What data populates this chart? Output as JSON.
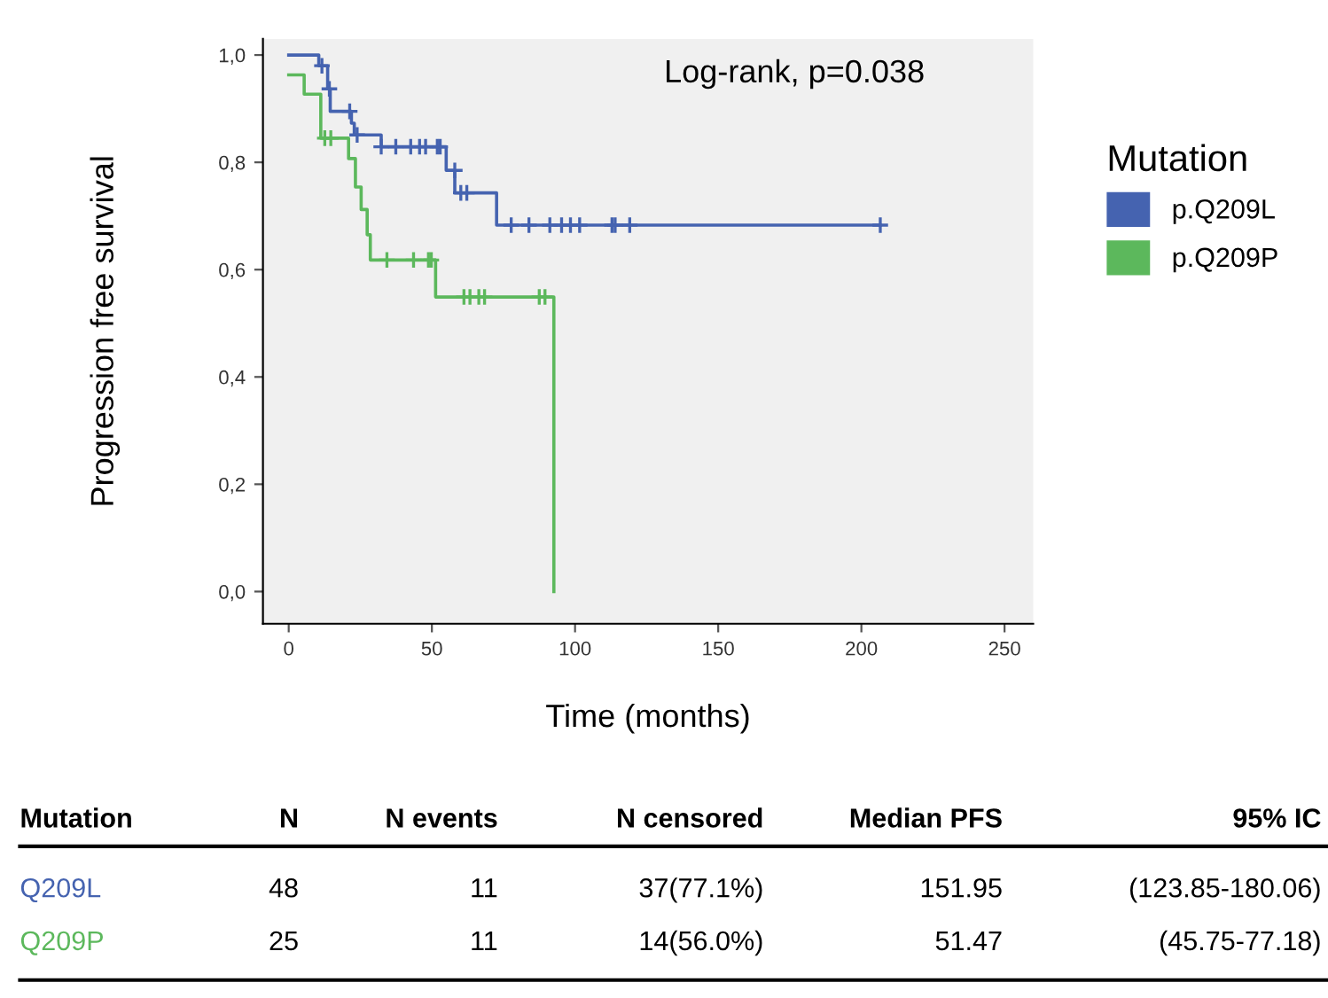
{
  "chart_data": {
    "type": "step",
    "ylabel": "Progression free survival",
    "xlabel": "Time (months)",
    "legend_title": "Mutation",
    "legend": "right",
    "grid": false,
    "xlim": [
      -9,
      260
    ],
    "xticks": [
      0,
      50,
      100,
      150,
      200,
      250
    ],
    "ylim": [
      -0.06,
      1.03
    ],
    "yticks": [
      {
        "value": 0.0,
        "label": "0,0"
      },
      {
        "value": 0.2,
        "label": "0,2"
      },
      {
        "value": 0.4,
        "label": "0,4"
      },
      {
        "value": 0.6,
        "label": "0,6"
      },
      {
        "value": 0.8,
        "label": "0,8"
      },
      {
        "value": 1.0,
        "label": "1,0"
      }
    ],
    "series": [
      {
        "name": "p.Q209L",
        "color": "#4563b0",
        "marker": "none",
        "x": [
          0,
          10.5,
          13.6,
          14.5,
          21.9,
          22.9,
          32.3,
          55,
          58,
          72.6,
          206.6
        ],
        "values": [
          1.0,
          0.98,
          0.937,
          0.895,
          0.873,
          0.851,
          0.829,
          0.785,
          0.743,
          0.683,
          0.683
        ]
      },
      {
        "name": "p.Q209P",
        "color": "#5cb85c",
        "marker": "none",
        "x": [
          0,
          5.4,
          11.2,
          20.9,
          23.3,
          25.3,
          27.4,
          28.5,
          51.3,
          92.6
        ],
        "values": [
          0.963,
          0.927,
          0.845,
          0.807,
          0.754,
          0.712,
          0.665,
          0.618,
          0.549,
          0.0
        ]
      },
      {
        "color": "#4563b0",
        "type": "scatter",
        "marker": "cross",
        "x": [
          11.6,
          14.2,
          21.3,
          23.9,
          32.3,
          37.4,
          42.6,
          45.7,
          47.8,
          51.9,
          52.9,
          58,
          60.1,
          62.2,
          77.7,
          83.9,
          91.2,
          95.3,
          98.4,
          101.6,
          112.9,
          114,
          119.1,
          206.6
        ],
        "values": [
          0.98,
          0.937,
          0.895,
          0.851,
          0.829,
          0.829,
          0.829,
          0.829,
          0.829,
          0.829,
          0.829,
          0.785,
          0.743,
          0.743,
          0.683,
          0.683,
          0.683,
          0.683,
          0.683,
          0.683,
          0.683,
          0.683,
          0.683,
          0.683
        ]
      },
      {
        "color": "#5cb85c",
        "type": "scatter",
        "marker": "cross",
        "x": [
          12.6,
          14.7,
          34.3,
          43.6,
          48.8,
          49.8,
          61.2,
          63.3,
          66.4,
          68.4,
          87.5,
          89.5
        ],
        "values": [
          0.845,
          0.845,
          0.618,
          0.618,
          0.618,
          0.618,
          0.549,
          0.549,
          0.549,
          0.549,
          0.549,
          0.549
        ]
      }
    ],
    "annotations": [
      "Log-rank, p=0.038",
      "Mutation",
      "N",
      "N events",
      "N censored",
      "Median PFS",
      "95% IC",
      "Q209L",
      "48",
      "11",
      "37(77.1%)",
      "151.95",
      "(123.85-180.06)",
      "Q209P",
      "25",
      "11",
      "14(56.0%)",
      "51.47",
      "(45.75-77.18)"
    ]
  }
}
